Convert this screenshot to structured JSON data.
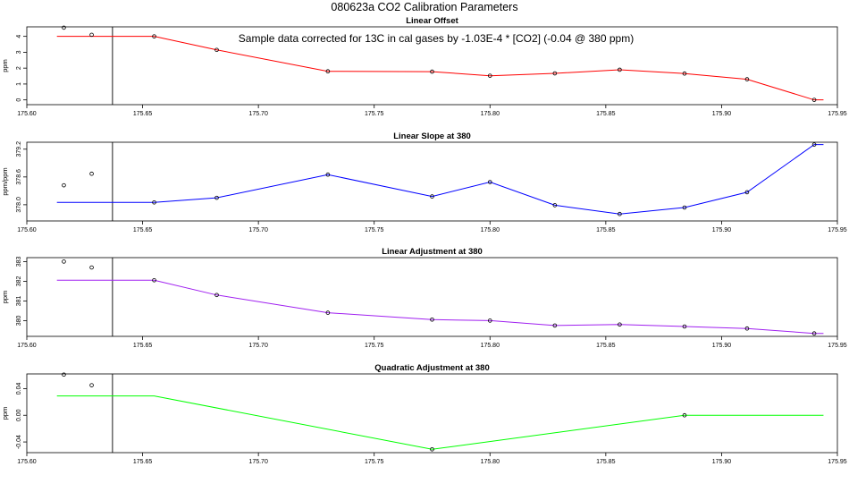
{
  "page_title": "080623a   CO2 Calibration Parameters",
  "annotation": "Sample data corrected for 13C in cal gases by -1.03E-4 * [CO2] (-0.04 @ 380 ppm)",
  "chart_data": [
    {
      "type": "line",
      "title": "Linear Offset",
      "ylabel": "ppm",
      "xlim": [
        175.6,
        175.95
      ],
      "ylim": [
        -0.3,
        4.6
      ],
      "xticks": [
        "175.60",
        "175.65",
        "175.70",
        "175.75",
        "175.80",
        "175.85",
        "175.90",
        "175.95"
      ],
      "yticks": [
        "0",
        "1",
        "2",
        "3",
        "4"
      ],
      "vline_x": 175.637,
      "line_color": "#ff0000",
      "line_x": [
        175.613,
        175.655,
        175.682,
        175.73,
        175.775,
        175.8,
        175.828,
        175.856,
        175.884,
        175.911,
        175.94,
        175.944
      ],
      "line_y": [
        4.0,
        4.0,
        3.15,
        1.8,
        1.78,
        1.52,
        1.67,
        1.9,
        1.66,
        1.3,
        0.0,
        0.0
      ],
      "points_x": [
        175.616,
        175.628,
        175.655,
        175.682,
        175.73,
        175.775,
        175.8,
        175.828,
        175.856,
        175.884,
        175.911,
        175.94
      ],
      "points_y": [
        4.55,
        4.1,
        4.0,
        3.15,
        1.8,
        1.78,
        1.52,
        1.67,
        1.9,
        1.66,
        1.3,
        0.0
      ]
    },
    {
      "type": "line",
      "title": "Linear Slope at 380",
      "ylabel": "ppm/ppm",
      "xlim": [
        175.6,
        175.95
      ],
      "ylim": [
        377.65,
        379.35
      ],
      "xticks": [
        "175.60",
        "175.65",
        "175.70",
        "175.75",
        "175.80",
        "175.85",
        "175.90",
        "175.95"
      ],
      "yticks": [
        "378.0",
        "378.6",
        "379.2"
      ],
      "vline_x": 175.637,
      "line_color": "#0000ff",
      "line_x": [
        175.613,
        175.655,
        175.682,
        175.73,
        175.775,
        175.8,
        175.828,
        175.856,
        175.884,
        175.911,
        175.94,
        175.944
      ],
      "line_y": [
        378.05,
        378.05,
        378.15,
        378.65,
        378.18,
        378.49,
        377.99,
        377.8,
        377.94,
        378.27,
        379.3,
        379.3
      ],
      "points_x": [
        175.616,
        175.628,
        175.655,
        175.682,
        175.73,
        175.775,
        175.8,
        175.828,
        175.856,
        175.884,
        175.911,
        175.94
      ],
      "points_y": [
        378.42,
        378.67,
        378.05,
        378.15,
        378.65,
        378.18,
        378.49,
        377.99,
        377.8,
        377.94,
        378.27,
        379.3
      ]
    },
    {
      "type": "line",
      "title": "Linear Adjustment at 380",
      "ylabel": "ppm",
      "xlim": [
        175.6,
        175.95
      ],
      "ylim": [
        379.2,
        383.2
      ],
      "xticks": [
        "175.60",
        "175.65",
        "175.70",
        "175.75",
        "175.80",
        "175.85",
        "175.90",
        "175.95"
      ],
      "yticks": [
        "380",
        "381",
        "382",
        "383"
      ],
      "vline_x": 175.637,
      "line_color": "#a020f0",
      "line_x": [
        175.613,
        175.655,
        175.682,
        175.73,
        175.775,
        175.8,
        175.828,
        175.856,
        175.884,
        175.911,
        175.94,
        175.944
      ],
      "line_y": [
        382.05,
        382.05,
        381.3,
        380.4,
        380.05,
        380.0,
        379.75,
        379.8,
        379.7,
        379.6,
        379.35,
        379.35
      ],
      "points_x": [
        175.616,
        175.628,
        175.655,
        175.682,
        175.73,
        175.775,
        175.8,
        175.828,
        175.856,
        175.884,
        175.911,
        175.94
      ],
      "points_y": [
        383.0,
        382.7,
        382.05,
        381.3,
        380.4,
        380.05,
        380.0,
        379.75,
        379.8,
        379.7,
        379.6,
        379.35
      ]
    },
    {
      "type": "line",
      "title": "Quadratic Adjustment at 380",
      "ylabel": "ppm",
      "xlim": [
        175.6,
        175.95
      ],
      "ylim": [
        -0.056,
        0.062
      ],
      "xticks": [
        "175.60",
        "175.65",
        "175.70",
        "175.75",
        "175.80",
        "175.85",
        "175.90",
        "175.95"
      ],
      "yticks": [
        "-0.04",
        "0.00",
        "0.04"
      ],
      "vline_x": 175.637,
      "line_color": "#00ff00",
      "line_x": [
        175.613,
        175.655,
        175.775,
        175.884,
        175.944
      ],
      "line_y": [
        0.029,
        0.029,
        -0.051,
        0.0,
        0.0
      ],
      "points_x": [
        175.616,
        175.628,
        175.775,
        175.884
      ],
      "points_y": [
        0.061,
        0.045,
        -0.051,
        0.0
      ]
    }
  ]
}
